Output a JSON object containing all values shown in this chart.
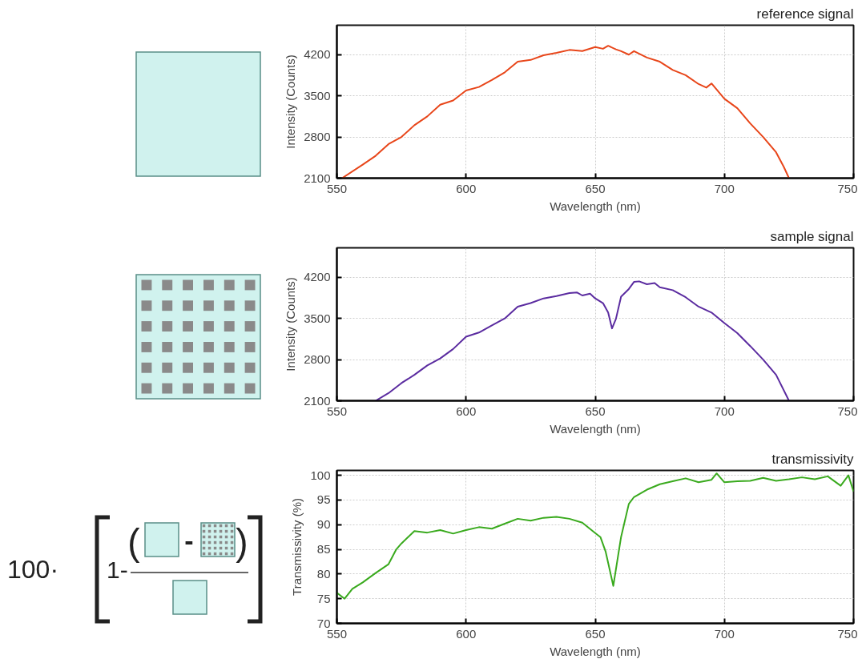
{
  "chart_data": [
    {
      "type": "line",
      "title": "reference signal",
      "xlabel": "Wavelength (nm)",
      "ylabel": "Intensity (Counts)",
      "xlim": [
        550,
        750
      ],
      "xticks": [
        550,
        600,
        650,
        700,
        750
      ],
      "ylim": [
        2100,
        4700
      ],
      "yticks": [
        2100,
        2800,
        3500,
        4200
      ],
      "grid": true,
      "series": [
        {
          "color": "#e8461a",
          "x": [
            552,
            560,
            565,
            570,
            575,
            580,
            585,
            590,
            595,
            600,
            605,
            610,
            615,
            620,
            625,
            630,
            635,
            640,
            645,
            650,
            653,
            655,
            658,
            660,
            663,
            665,
            670,
            675,
            680,
            685,
            690,
            693,
            695,
            700,
            705,
            710,
            715,
            720,
            723,
            725
          ],
          "values": [
            2100,
            2330,
            2480,
            2680,
            2800,
            3000,
            3150,
            3350,
            3420,
            3590,
            3650,
            3770,
            3900,
            4080,
            4110,
            4190,
            4230,
            4280,
            4260,
            4330,
            4300,
            4350,
            4290,
            4260,
            4200,
            4260,
            4150,
            4080,
            3940,
            3850,
            3700,
            3640,
            3710,
            3450,
            3290,
            3030,
            2800,
            2540,
            2290,
            2100
          ]
        }
      ]
    },
    {
      "type": "line",
      "title": "sample signal",
      "xlabel": "Wavelength (nm)",
      "ylabel": "Intensity (Counts)",
      "xlim": [
        550,
        750
      ],
      "xticks": [
        550,
        600,
        650,
        700,
        750
      ],
      "ylim": [
        2100,
        4700
      ],
      "yticks": [
        2100,
        2800,
        3500,
        4200
      ],
      "grid": true,
      "series": [
        {
          "color": "#5b2ca0",
          "x": [
            565,
            570,
            575,
            580,
            585,
            590,
            595,
            600,
            605,
            610,
            615,
            620,
            625,
            630,
            635,
            640,
            643,
            645,
            648,
            650,
            653,
            655,
            656.5,
            658,
            660,
            663,
            665,
            667,
            670,
            673,
            675,
            680,
            685,
            690,
            695,
            700,
            705,
            710,
            715,
            720,
            725
          ],
          "values": [
            2100,
            2230,
            2400,
            2540,
            2700,
            2820,
            2980,
            3190,
            3260,
            3380,
            3500,
            3700,
            3760,
            3840,
            3880,
            3930,
            3940,
            3890,
            3920,
            3840,
            3760,
            3600,
            3330,
            3490,
            3870,
            4000,
            4120,
            4130,
            4080,
            4100,
            4030,
            3980,
            3860,
            3700,
            3600,
            3420,
            3250,
            3030,
            2800,
            2540,
            2100
          ]
        }
      ]
    },
    {
      "type": "line",
      "title": "transmissivity",
      "xlabel": "Wavelength (nm)",
      "ylabel": "Transmissivity (%)",
      "xlim": [
        550,
        750
      ],
      "xticks": [
        550,
        600,
        650,
        700,
        750
      ],
      "ylim": [
        70,
        101
      ],
      "yticks": [
        70,
        75,
        80,
        85,
        90,
        95,
        100
      ],
      "grid": true,
      "annotations": [
        "100·",
        "1-",
        "(",
        "-",
        ")"
      ],
      "series": [
        {
          "color": "#3aaa1e",
          "x": [
            550,
            553,
            556,
            560,
            565,
            570,
            573,
            575,
            580,
            585,
            590,
            595,
            600,
            605,
            610,
            615,
            620,
            625,
            630,
            635,
            640,
            645,
            650,
            652,
            654,
            657,
            660,
            663,
            665,
            670,
            675,
            680,
            685,
            690,
            695,
            697,
            700,
            705,
            710,
            715,
            720,
            725,
            730,
            735,
            740,
            745,
            748,
            750
          ],
          "values": [
            76.2,
            75,
            77,
            78.3,
            80.2,
            82,
            85,
            86.2,
            88.7,
            88.4,
            88.9,
            88.2,
            88.9,
            89.5,
            89.2,
            90.2,
            91.2,
            90.8,
            91.4,
            91.6,
            91.2,
            90.4,
            88.3,
            87.5,
            84.6,
            77.6,
            87.5,
            94.2,
            95.6,
            97.1,
            98.2,
            98.8,
            99.4,
            98.6,
            99.1,
            100.4,
            98.6,
            98.8,
            98.9,
            99.5,
            98.9,
            99.2,
            99.6,
            99.2,
            99.8,
            97.9,
            100,
            96.7
          ]
        }
      ]
    }
  ]
}
